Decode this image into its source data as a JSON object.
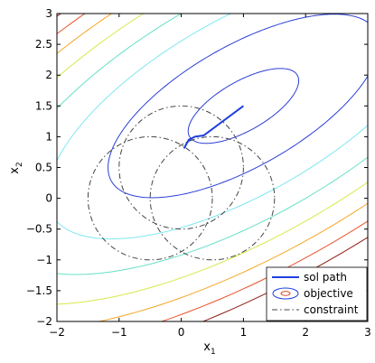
{
  "chart_data": {
    "type": "line",
    "xlabel": "x",
    "xlabel_sub": "1",
    "ylabel": "x",
    "ylabel_sub": "2",
    "xlim": [
      -2,
      3
    ],
    "ylim": [
      -2,
      3
    ],
    "xticks": [
      -2,
      -1,
      0,
      1,
      2,
      3
    ],
    "xtick_labels": [
      "−2",
      "−1",
      "0",
      "1",
      "2",
      "3"
    ],
    "yticks": [
      -2,
      -1.5,
      -1,
      -0.5,
      0,
      0.5,
      1,
      1.5,
      2,
      2.5,
      3
    ],
    "ytick_labels": [
      "−2",
      "−1.5",
      "−1",
      "−0.5",
      "0",
      "0.5",
      "1",
      "1.5",
      "2",
      "2.5",
      "3"
    ],
    "grid": false,
    "legend_position": "bottom-right",
    "legend": [
      {
        "label": "sol path",
        "style": "solid",
        "color": "#1f3fe0"
      },
      {
        "label": "objective",
        "style": "ellipse-marker",
        "color": "#1f3fe0"
      },
      {
        "label": "constraint",
        "style": "dash-dot",
        "color": "#444444"
      }
    ],
    "objective_contours": {
      "center": [
        1.0,
        1.5
      ],
      "angle_deg": 30,
      "axis_ratio": 0.4,
      "semi_major": [
        1.0,
        2.45,
        3.55,
        4.5,
        5.3,
        6.0,
        6.6,
        7.15
      ],
      "colors": [
        "#2b3fd6",
        "#2b3fd6",
        "#7fe7f2",
        "#66e0c8",
        "#d9e84a",
        "#f5a623",
        "#e8542d",
        "#8b1a10"
      ]
    },
    "constraint_circles": [
      {
        "cx": 0.0,
        "cy": 0.5,
        "r": 1.0
      },
      {
        "cx": -0.5,
        "cy": 0.0,
        "r": 1.0
      },
      {
        "cx": 0.5,
        "cy": 0.0,
        "r": 1.0
      }
    ],
    "sol_path": {
      "x": [
        1.0,
        0.36,
        0.22,
        0.12,
        0.05,
        0.09,
        0.15
      ],
      "y": [
        1.5,
        1.02,
        1.0,
        0.95,
        0.82,
        0.9,
        0.97
      ]
    },
    "colors": {
      "sol_path": "#1f3fe0",
      "constraint": "#444444",
      "axes": "#000000"
    }
  }
}
